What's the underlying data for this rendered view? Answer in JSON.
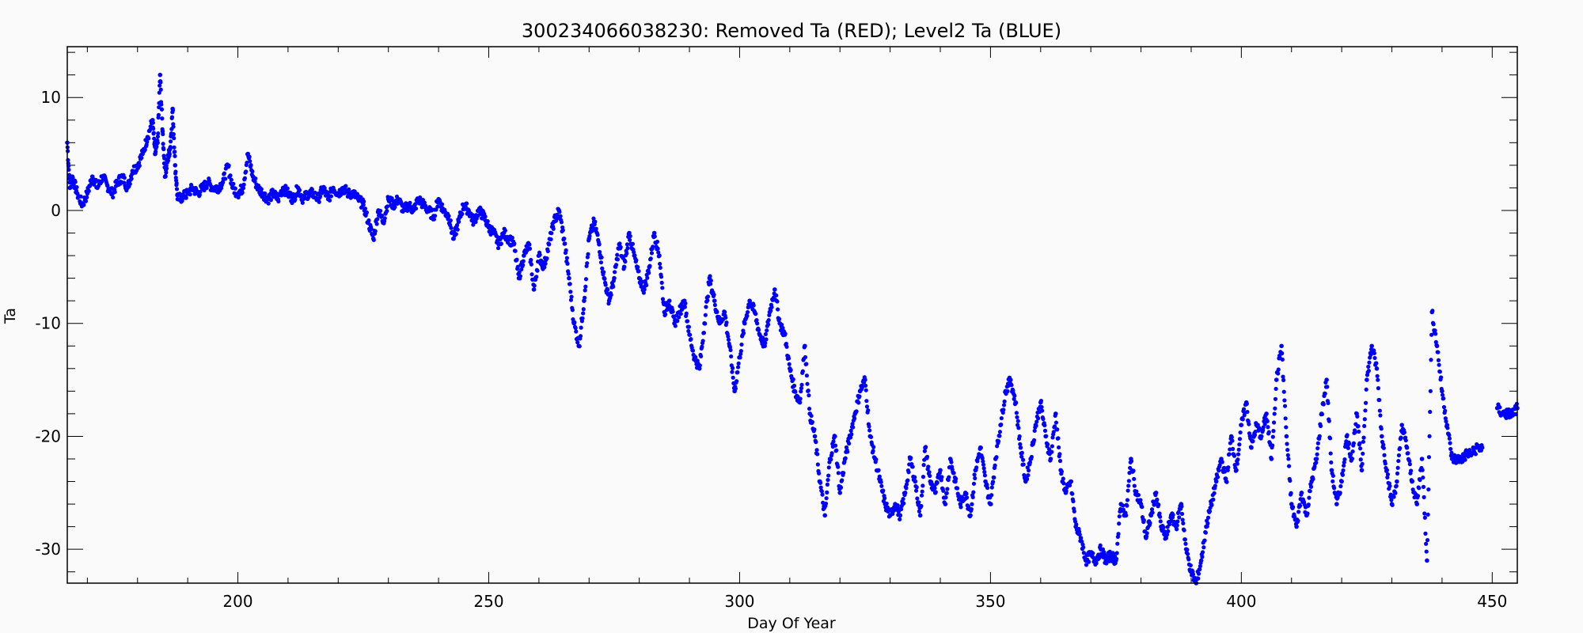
{
  "chart_data": {
    "type": "scatter",
    "title": "300234066038230: Removed Ta (RED); Level2 Ta (BLUE)",
    "xlabel": "Day Of Year",
    "ylabel": "Ta",
    "xlim": [
      166,
      455
    ],
    "ylim": [
      -33,
      14.5
    ],
    "x_ticks": [
      200,
      250,
      300,
      350,
      400,
      450
    ],
    "y_ticks": [
      10,
      0,
      -10,
      -20,
      -30
    ],
    "x_minor_step": 10,
    "y_minor_step": 2,
    "grid": false,
    "point_color": "#1010ee",
    "series": [
      {
        "name": "Level2 Ta",
        "color": "#0000ff",
        "points": [
          [
            166,
            6
          ],
          [
            166.5,
            2
          ],
          [
            167,
            3
          ],
          [
            168,
            1.5
          ],
          [
            169,
            0.5
          ],
          [
            170,
            1.5
          ],
          [
            171,
            3
          ],
          [
            172,
            2
          ],
          [
            173,
            3
          ],
          [
            174,
            2.2
          ],
          [
            175,
            1.5
          ],
          [
            176,
            2.5
          ],
          [
            177,
            3
          ],
          [
            178,
            2
          ],
          [
            179,
            3.5
          ],
          [
            180,
            4
          ],
          [
            181,
            5
          ],
          [
            182,
            6.5
          ],
          [
            183,
            8
          ],
          [
            183.5,
            5
          ],
          [
            184,
            6
          ],
          [
            184.5,
            12
          ],
          [
            185,
            7
          ],
          [
            185.5,
            3
          ],
          [
            186,
            4.5
          ],
          [
            186.5,
            5.5
          ],
          [
            187,
            9
          ],
          [
            187.5,
            4
          ],
          [
            188,
            1
          ],
          [
            189,
            1.2
          ],
          [
            190,
            1.5
          ],
          [
            191,
            2
          ],
          [
            192,
            1.5
          ],
          [
            193,
            2
          ],
          [
            194,
            2.5
          ],
          [
            195,
            2
          ],
          [
            196,
            2
          ],
          [
            197,
            2.5
          ],
          [
            198,
            4
          ],
          [
            199,
            2
          ],
          [
            200,
            1.5
          ],
          [
            201,
            2
          ],
          [
            202,
            5
          ],
          [
            203,
            3
          ],
          [
            204,
            2
          ],
          [
            205,
            1.5
          ],
          [
            206,
            1
          ],
          [
            207,
            1.5
          ],
          [
            208,
            1
          ],
          [
            209,
            2
          ],
          [
            210,
            1.5
          ],
          [
            211,
            1
          ],
          [
            212,
            2
          ],
          [
            213,
            1
          ],
          [
            214,
            1.5
          ],
          [
            215,
            1.5
          ],
          [
            216,
            1
          ],
          [
            217,
            2
          ],
          [
            218,
            1
          ],
          [
            219,
            2
          ],
          [
            220,
            1.5
          ],
          [
            221,
            2
          ],
          [
            222,
            1.5
          ],
          [
            223,
            1.5
          ],
          [
            224,
            1
          ],
          [
            225,
            0.5
          ],
          [
            226,
            -1
          ],
          [
            227,
            -2.5
          ],
          [
            228,
            0
          ],
          [
            229,
            -1
          ],
          [
            230,
            1
          ],
          [
            231,
            0.5
          ],
          [
            232,
            1
          ],
          [
            233,
            0
          ],
          [
            234,
            0.5
          ],
          [
            235,
            0
          ],
          [
            236,
            1
          ],
          [
            237,
            0.5
          ],
          [
            238,
            0
          ],
          [
            239,
            -0.5
          ],
          [
            240,
            1
          ],
          [
            241,
            0
          ],
          [
            242,
            -0.5
          ],
          [
            243,
            -2.5
          ],
          [
            244,
            -1
          ],
          [
            245,
            0.5
          ],
          [
            246,
            0
          ],
          [
            247,
            -1
          ],
          [
            248,
            0
          ],
          [
            249,
            -0.5
          ],
          [
            250,
            -1.5
          ],
          [
            251,
            -2
          ],
          [
            252,
            -3
          ],
          [
            253,
            -2
          ],
          [
            254,
            -2.5
          ],
          [
            255,
            -3
          ],
          [
            256,
            -6
          ],
          [
            257,
            -4
          ],
          [
            258,
            -3
          ],
          [
            259,
            -7
          ],
          [
            260,
            -4
          ],
          [
            261,
            -5
          ],
          [
            262,
            -3
          ],
          [
            263,
            -1
          ],
          [
            264,
            0
          ],
          [
            265,
            -2.5
          ],
          [
            266,
            -6
          ],
          [
            267,
            -10
          ],
          [
            268,
            -12
          ],
          [
            269,
            -8
          ],
          [
            270,
            -2.5
          ],
          [
            271,
            -1
          ],
          [
            272,
            -3
          ],
          [
            273,
            -6
          ],
          [
            274,
            -8
          ],
          [
            275,
            -6
          ],
          [
            276,
            -3
          ],
          [
            277,
            -5
          ],
          [
            278,
            -2
          ],
          [
            279,
            -4
          ],
          [
            280,
            -6
          ],
          [
            281,
            -7
          ],
          [
            282,
            -5
          ],
          [
            283,
            -2
          ],
          [
            284,
            -4
          ],
          [
            285,
            -9
          ],
          [
            286,
            -8
          ],
          [
            287,
            -10
          ],
          [
            288,
            -9
          ],
          [
            289,
            -8
          ],
          [
            290,
            -11
          ],
          [
            291,
            -13
          ],
          [
            292,
            -14
          ],
          [
            293,
            -10
          ],
          [
            294,
            -6
          ],
          [
            295,
            -8
          ],
          [
            296,
            -10
          ],
          [
            297,
            -9
          ],
          [
            298,
            -12
          ],
          [
            299,
            -16
          ],
          [
            300,
            -13
          ],
          [
            301,
            -10
          ],
          [
            302,
            -8
          ],
          [
            303,
            -9
          ],
          [
            304,
            -11
          ],
          [
            305,
            -12
          ],
          [
            306,
            -9
          ],
          [
            307,
            -7
          ],
          [
            308,
            -10
          ],
          [
            309,
            -11
          ],
          [
            310,
            -14
          ],
          [
            311,
            -16
          ],
          [
            312,
            -17
          ],
          [
            313,
            -12
          ],
          [
            314,
            -18
          ],
          [
            315,
            -20
          ],
          [
            316,
            -24
          ],
          [
            317,
            -27
          ],
          [
            318,
            -22
          ],
          [
            319,
            -20
          ],
          [
            320,
            -25
          ],
          [
            321,
            -22
          ],
          [
            322,
            -20
          ],
          [
            323,
            -18
          ],
          [
            324,
            -16
          ],
          [
            325,
            -15
          ],
          [
            326,
            -20
          ],
          [
            327,
            -22
          ],
          [
            328,
            -24
          ],
          [
            329,
            -26
          ],
          [
            330,
            -27
          ],
          [
            331,
            -26
          ],
          [
            332,
            -27
          ],
          [
            333,
            -25
          ],
          [
            334,
            -22
          ],
          [
            335,
            -24
          ],
          [
            336,
            -27
          ],
          [
            337,
            -21
          ],
          [
            338,
            -24
          ],
          [
            339,
            -25
          ],
          [
            340,
            -23
          ],
          [
            341,
            -26
          ],
          [
            342,
            -22
          ],
          [
            343,
            -24
          ],
          [
            344,
            -26
          ],
          [
            345,
            -25
          ],
          [
            346,
            -27
          ],
          [
            347,
            -23
          ],
          [
            348,
            -21
          ],
          [
            349,
            -24
          ],
          [
            350,
            -26
          ],
          [
            351,
            -22
          ],
          [
            352,
            -19
          ],
          [
            353,
            -16
          ],
          [
            354,
            -15
          ],
          [
            355,
            -17
          ],
          [
            356,
            -21
          ],
          [
            357,
            -24
          ],
          [
            358,
            -22
          ],
          [
            359,
            -19
          ],
          [
            360,
            -17
          ],
          [
            361,
            -20
          ],
          [
            362,
            -22
          ],
          [
            363,
            -18
          ],
          [
            364,
            -23
          ],
          [
            365,
            -25
          ],
          [
            366,
            -24
          ],
          [
            367,
            -28
          ],
          [
            368,
            -29
          ],
          [
            369,
            -31
          ],
          [
            370,
            -30.5
          ],
          [
            371,
            -31
          ],
          [
            372,
            -30
          ],
          [
            373,
            -31
          ],
          [
            374,
            -30.5
          ],
          [
            375,
            -31
          ],
          [
            376,
            -26
          ],
          [
            377,
            -27
          ],
          [
            378,
            -22
          ],
          [
            379,
            -25
          ],
          [
            380,
            -26
          ],
          [
            381,
            -29
          ],
          [
            382,
            -27
          ],
          [
            383,
            -25
          ],
          [
            384,
            -28
          ],
          [
            385,
            -29
          ],
          [
            386,
            -27
          ],
          [
            387,
            -28
          ],
          [
            388,
            -26
          ],
          [
            389,
            -30
          ],
          [
            390,
            -32
          ],
          [
            391,
            -33
          ],
          [
            392,
            -31
          ],
          [
            393,
            -28
          ],
          [
            394,
            -26
          ],
          [
            395,
            -24
          ],
          [
            396,
            -22
          ],
          [
            397,
            -24
          ],
          [
            398,
            -20
          ],
          [
            399,
            -23
          ],
          [
            400,
            -19
          ],
          [
            401,
            -17
          ],
          [
            402,
            -21
          ],
          [
            403,
            -19
          ],
          [
            404,
            -20
          ],
          [
            405,
            -18
          ],
          [
            406,
            -22
          ],
          [
            407,
            -15
          ],
          [
            408,
            -12
          ],
          [
            409,
            -20
          ],
          [
            410,
            -26
          ],
          [
            411,
            -28
          ],
          [
            412,
            -25
          ],
          [
            413,
            -27
          ],
          [
            414,
            -24
          ],
          [
            415,
            -22
          ],
          [
            416,
            -18
          ],
          [
            417,
            -15
          ],
          [
            418,
            -23
          ],
          [
            419,
            -26
          ],
          [
            420,
            -24
          ],
          [
            421,
            -20
          ],
          [
            422,
            -22
          ],
          [
            423,
            -18
          ],
          [
            424,
            -23
          ],
          [
            425,
            -15
          ],
          [
            426,
            -12
          ],
          [
            427,
            -14
          ],
          [
            428,
            -20
          ],
          [
            429,
            -23
          ],
          [
            430,
            -26
          ],
          [
            431,
            -24
          ],
          [
            432,
            -19
          ],
          [
            433,
            -21
          ],
          [
            434,
            -24
          ],
          [
            435,
            -26
          ],
          [
            436,
            -22
          ],
          [
            437,
            -31
          ],
          [
            438,
            -9
          ],
          [
            439,
            -12
          ],
          [
            440,
            -16
          ],
          [
            441,
            -19
          ],
          [
            442,
            -22
          ],
          [
            443,
            -22
          ],
          [
            444,
            -22
          ],
          [
            445,
            -21.5
          ],
          [
            446,
            -21.5
          ],
          [
            447,
            -21
          ],
          [
            448,
            -21
          ],
          [
            451,
            -17.5
          ],
          [
            452,
            -18
          ],
          [
            453,
            -18
          ],
          [
            454,
            -18
          ],
          [
            455,
            -17.5
          ]
        ]
      }
    ]
  }
}
